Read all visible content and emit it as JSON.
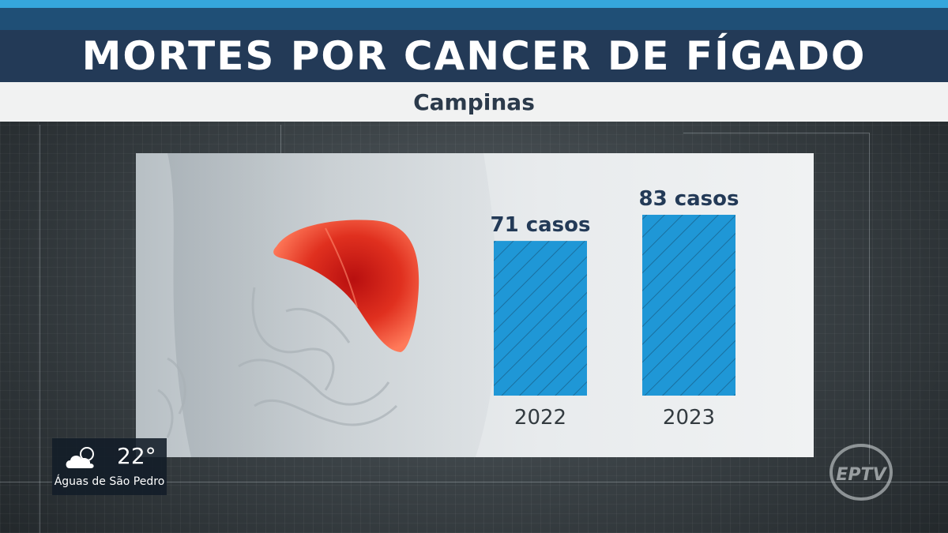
{
  "header": {
    "title": "MORTES POR CANCER DE FÍGADO",
    "subtitle": "Campinas"
  },
  "chart_data": {
    "type": "bar",
    "categories": [
      "2022",
      "2023"
    ],
    "values": [
      71,
      83
    ],
    "value_labels": [
      "71 casos",
      "83 casos"
    ],
    "title": "MORTES POR CANCER DE FÍGADO",
    "subtitle": "Campinas",
    "xlabel": "",
    "ylabel": "",
    "grid": false,
    "bar_color": "#1f97d6",
    "bar_pattern": "diagonal-hatch"
  },
  "weather": {
    "temperature": "22°",
    "city": "Águas de São Pedro",
    "icon": "partly-cloudy-icon"
  },
  "logo": {
    "text": "EPTV",
    "icon": "eptv-logo"
  },
  "colors": {
    "accent": "#35a6dc",
    "title_band": "#233a57",
    "bar": "#1f97d6"
  }
}
